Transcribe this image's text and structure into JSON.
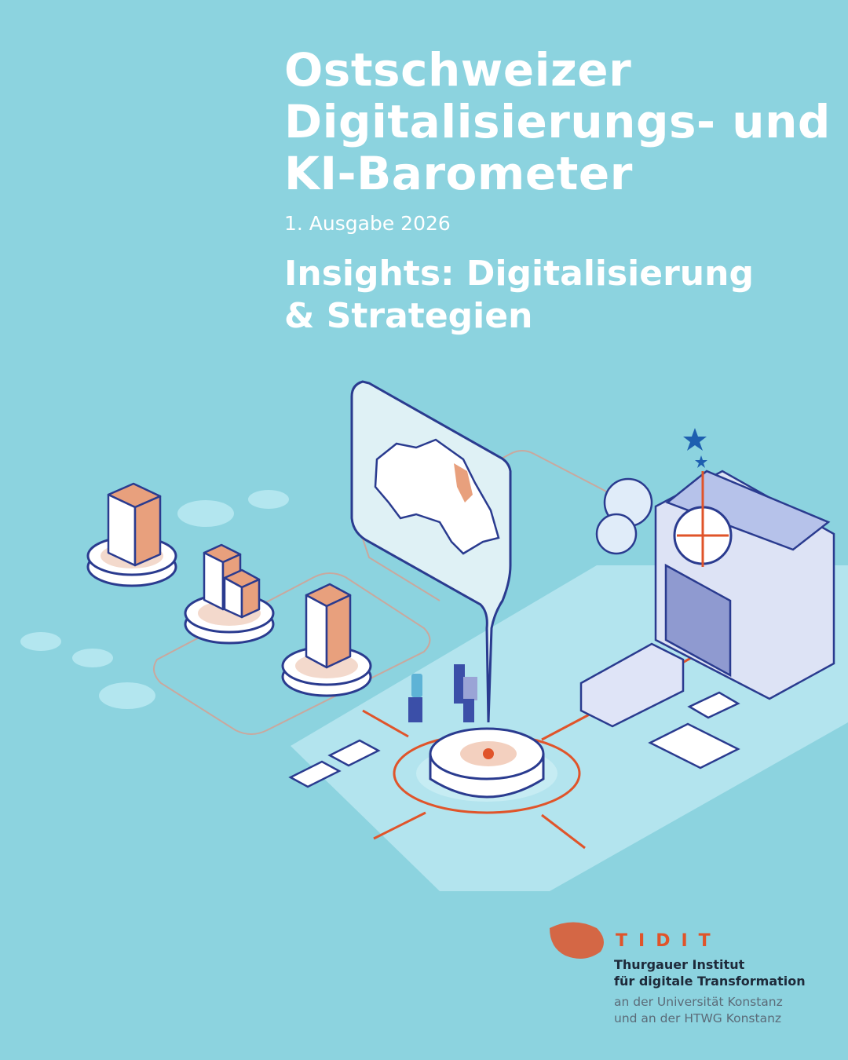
{
  "header": {
    "title_lines": [
      "Ostschweizer",
      "Digitalisierungs- und",
      "KI-Barometer"
    ],
    "edition": "1. Ausgabe 2026",
    "subtitle_lines": [
      "Insights: Digitalisierung",
      "& Strategien"
    ]
  },
  "logo": {
    "acronym": "TIDIT",
    "name_lines": [
      "Thurgauer Institut",
      "für digitale Transformation"
    ],
    "affiliation_lines": [
      "an der Universität Konstanz",
      "und an der HTWG Konstanz"
    ]
  }
}
